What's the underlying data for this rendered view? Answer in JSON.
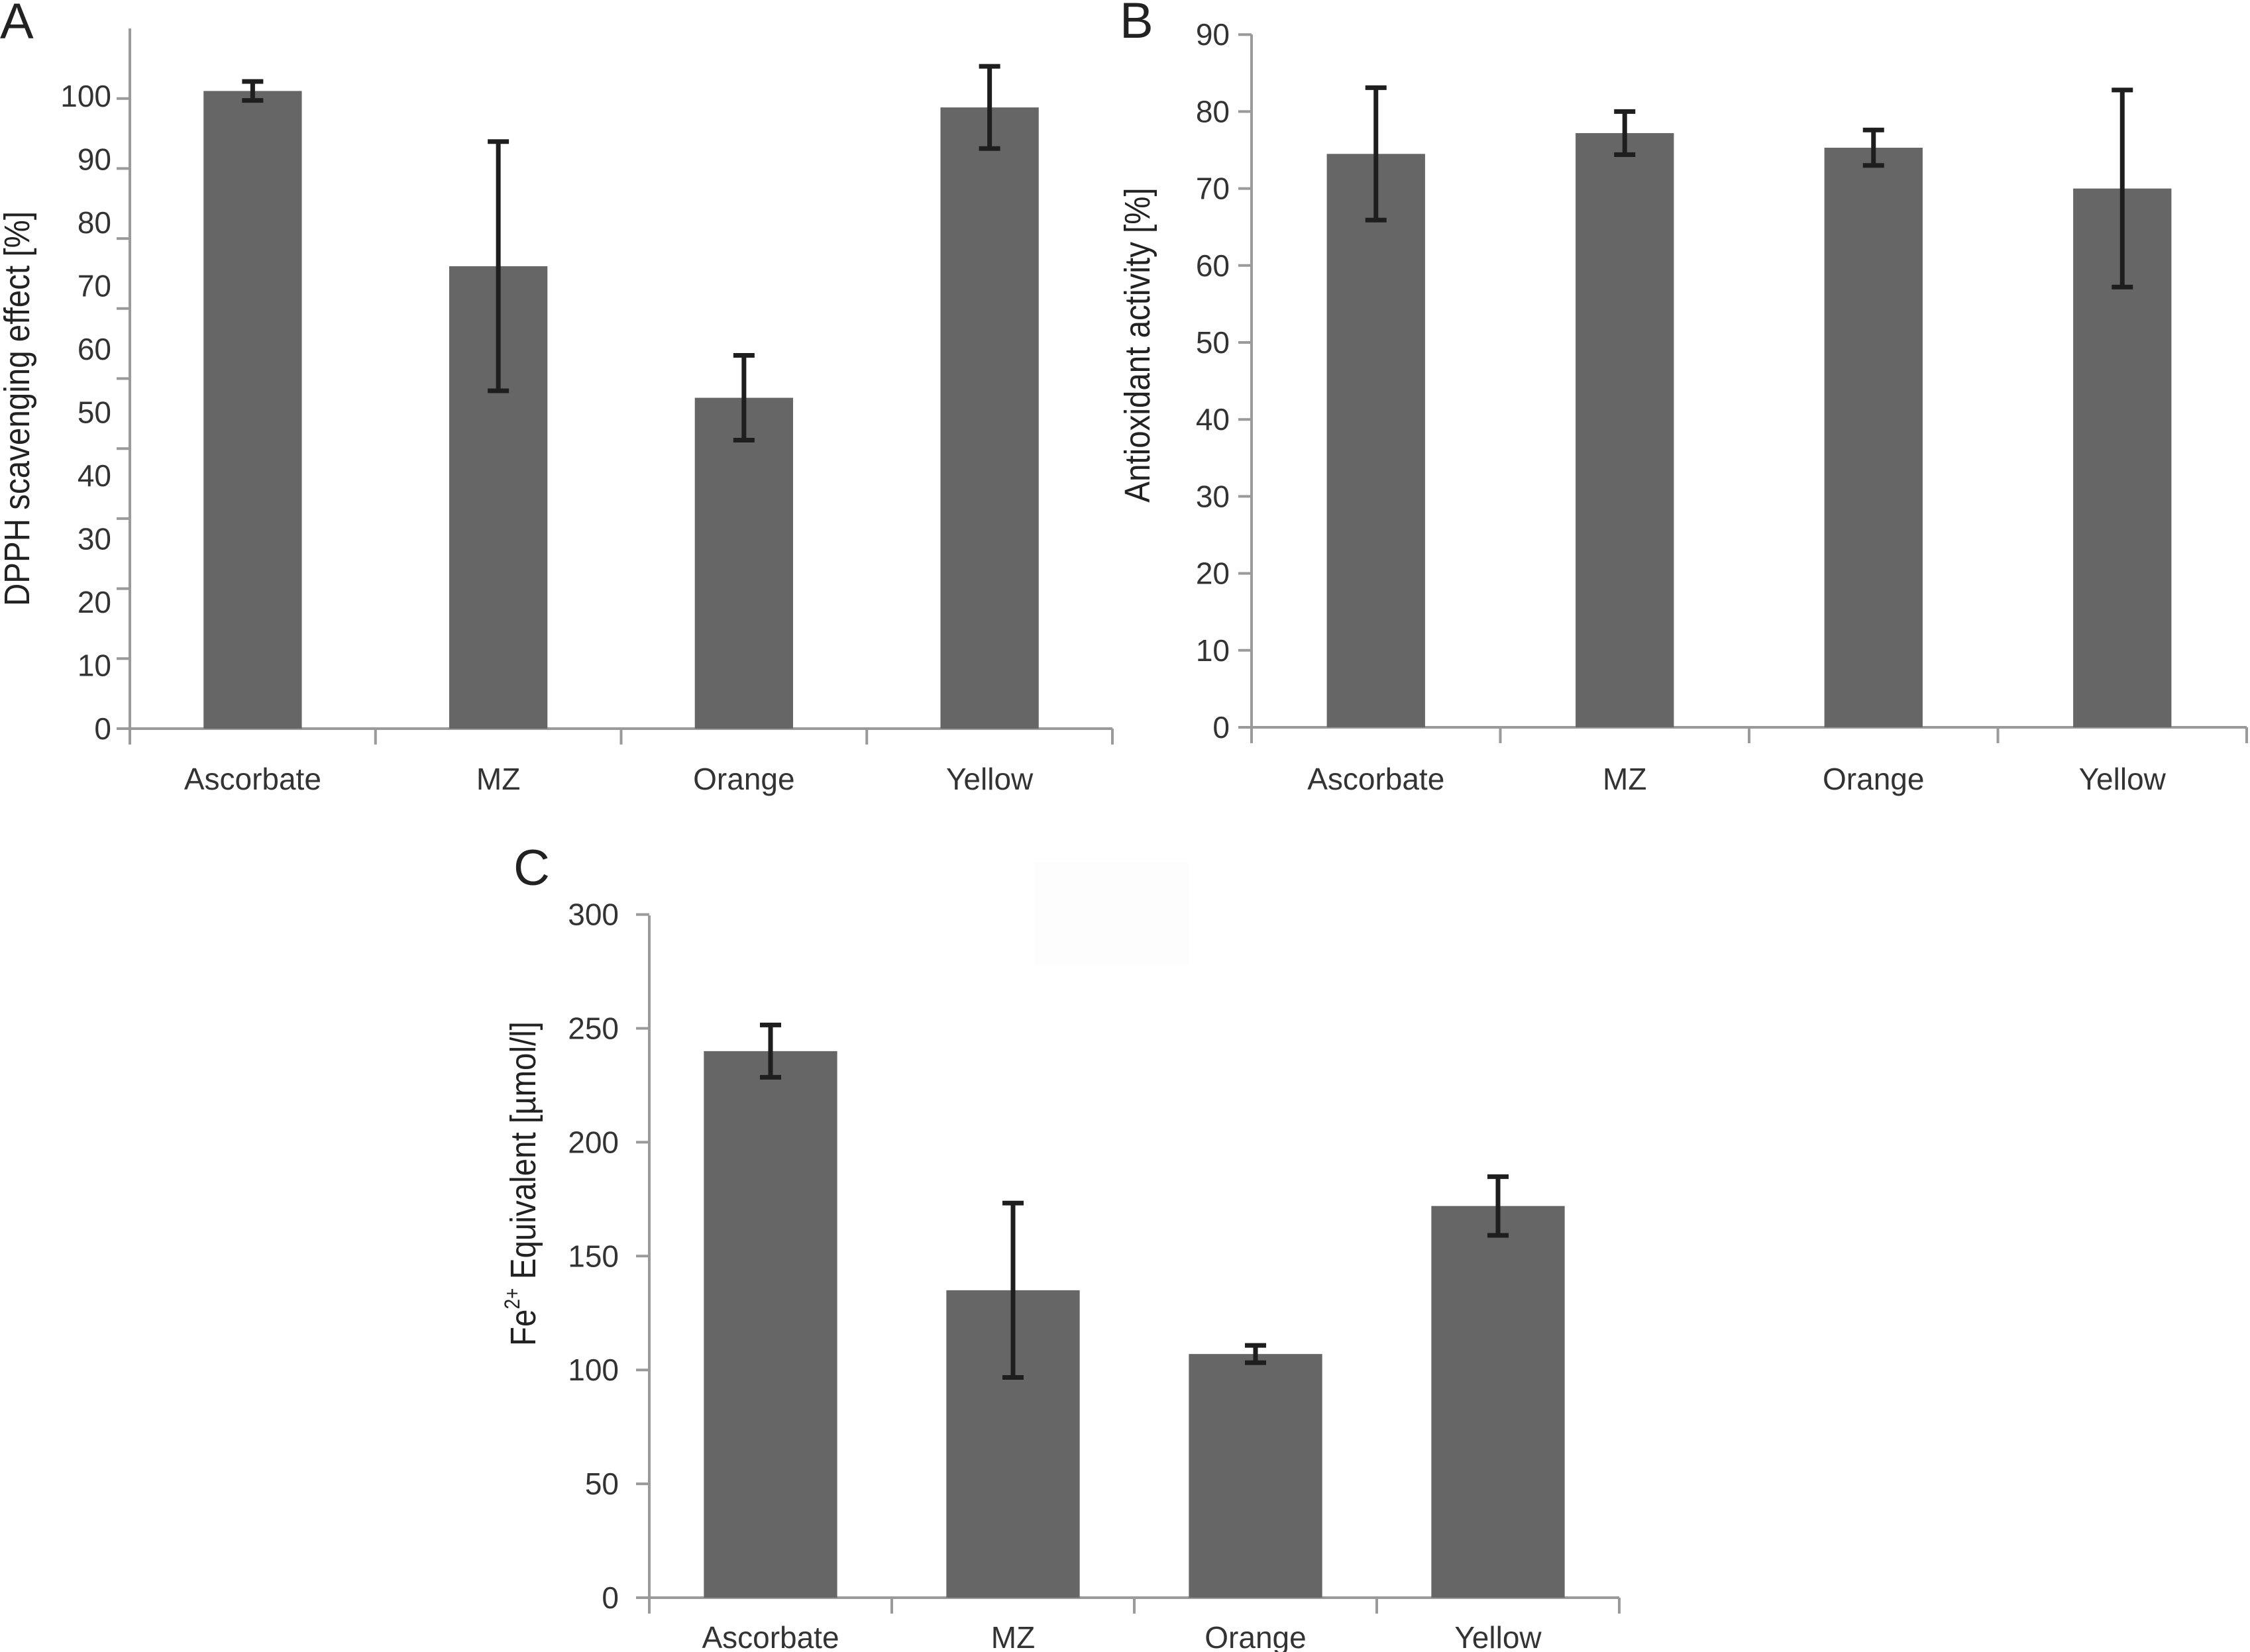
{
  "colors": {
    "bar": "#666666",
    "error_bar": "#1e1e1e",
    "axis": "#9a9a9a",
    "text": "#333333"
  },
  "chart_data": [
    {
      "panel": "A",
      "type": "bar",
      "title": "",
      "xlabel": "",
      "ylabel": "DPPH scavenging effect [%]",
      "ylim": [
        0,
        100
      ],
      "yticks": [
        0,
        10,
        20,
        30,
        40,
        50,
        60,
        70,
        80,
        90,
        100
      ],
      "categories": [
        "Ascorbate",
        "MZ",
        "Orange",
        "Yellow"
      ],
      "values": [
        100.8,
        73.1,
        52.3,
        98.2
      ],
      "errors": [
        1.5,
        19.7,
        6.7,
        6.5
      ],
      "grid": false,
      "legend": "none"
    },
    {
      "panel": "B",
      "type": "bar",
      "title": "",
      "xlabel": "",
      "ylabel": "Antioxidant activity [%]",
      "ylim": [
        0,
        90
      ],
      "yticks": [
        0,
        10,
        20,
        30,
        40,
        50,
        60,
        70,
        80,
        90
      ],
      "categories": [
        "Ascorbate",
        "MZ",
        "Orange",
        "Yellow"
      ],
      "values": [
        74.5,
        77.2,
        75.3,
        70.0
      ],
      "errors": [
        8.6,
        2.8,
        2.3,
        12.8
      ],
      "grid": false,
      "legend": "none"
    },
    {
      "panel": "C",
      "type": "bar",
      "title": "",
      "xlabel": "",
      "ylabel": "Fe2+ Equivalent [µmol/l]",
      "ylabel_parts": {
        "base": "Fe",
        "sup": "2+",
        "rest": " Equivalent [µmol/l]"
      },
      "ylim": [
        0,
        300
      ],
      "yticks": [
        0,
        50,
        100,
        150,
        200,
        250,
        300
      ],
      "categories": [
        "Ascorbate",
        "MZ",
        "Orange",
        "Yellow"
      ],
      "values": [
        240,
        135,
        107,
        172
      ],
      "errors": [
        11.5,
        38.3,
        3.8,
        12.9
      ],
      "grid": false,
      "legend": "none"
    }
  ]
}
